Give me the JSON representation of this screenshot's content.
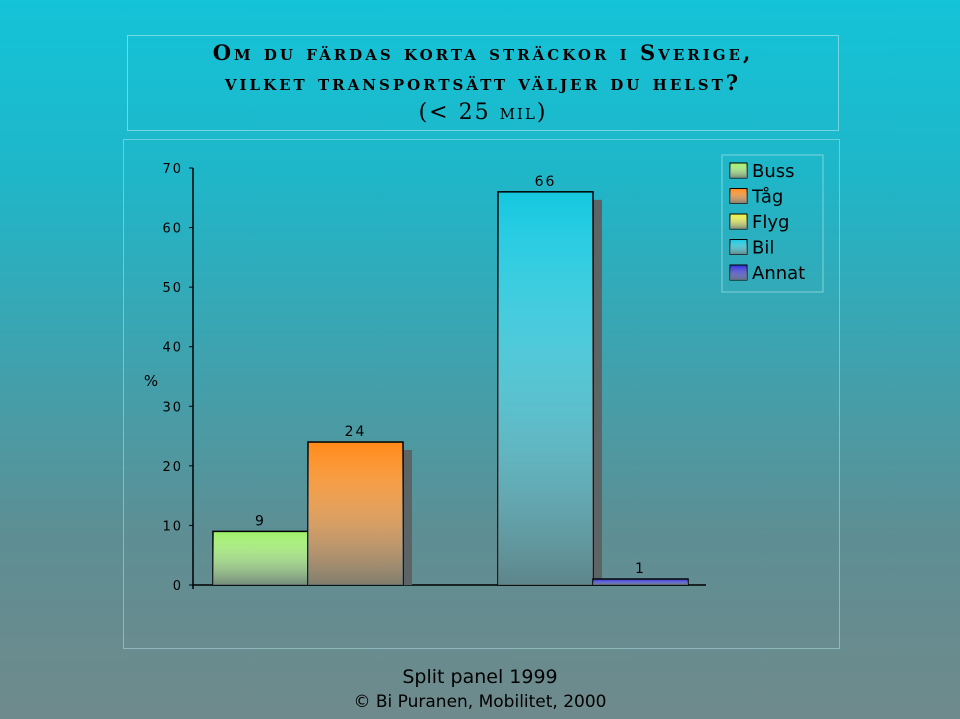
{
  "title": {
    "line1": "Om du färdas korta sträckor i Sverige,",
    "line2": "vilket transportsätt väljer du helst?",
    "line3": "(< 25 mil)"
  },
  "footer": {
    "line1": "Split panel 1999",
    "line2": "© Bi Puranen, Mobilitet, 2000"
  },
  "chart_data": {
    "type": "bar",
    "categories": [
      "Buss",
      "Tåg",
      "Flyg",
      "Bil",
      "Annat"
    ],
    "values": [
      9,
      24,
      0,
      66,
      1
    ],
    "data_labels": [
      "9",
      "24",
      "",
      "66",
      "1"
    ],
    "colors": [
      "#9ef06a",
      "#ff8a18",
      "#e8f040",
      "#14c8e0",
      "#2a2ad8"
    ],
    "ylabel": "%",
    "ylim": [
      0,
      70
    ],
    "yticks": [
      "0",
      "10",
      "20",
      "30",
      "40",
      "50",
      "60",
      "70"
    ],
    "grid": false,
    "legend": {
      "position": "top-right",
      "items": [
        "Buss",
        "Tåg",
        "Flyg",
        "Bil",
        "Annat"
      ]
    }
  }
}
